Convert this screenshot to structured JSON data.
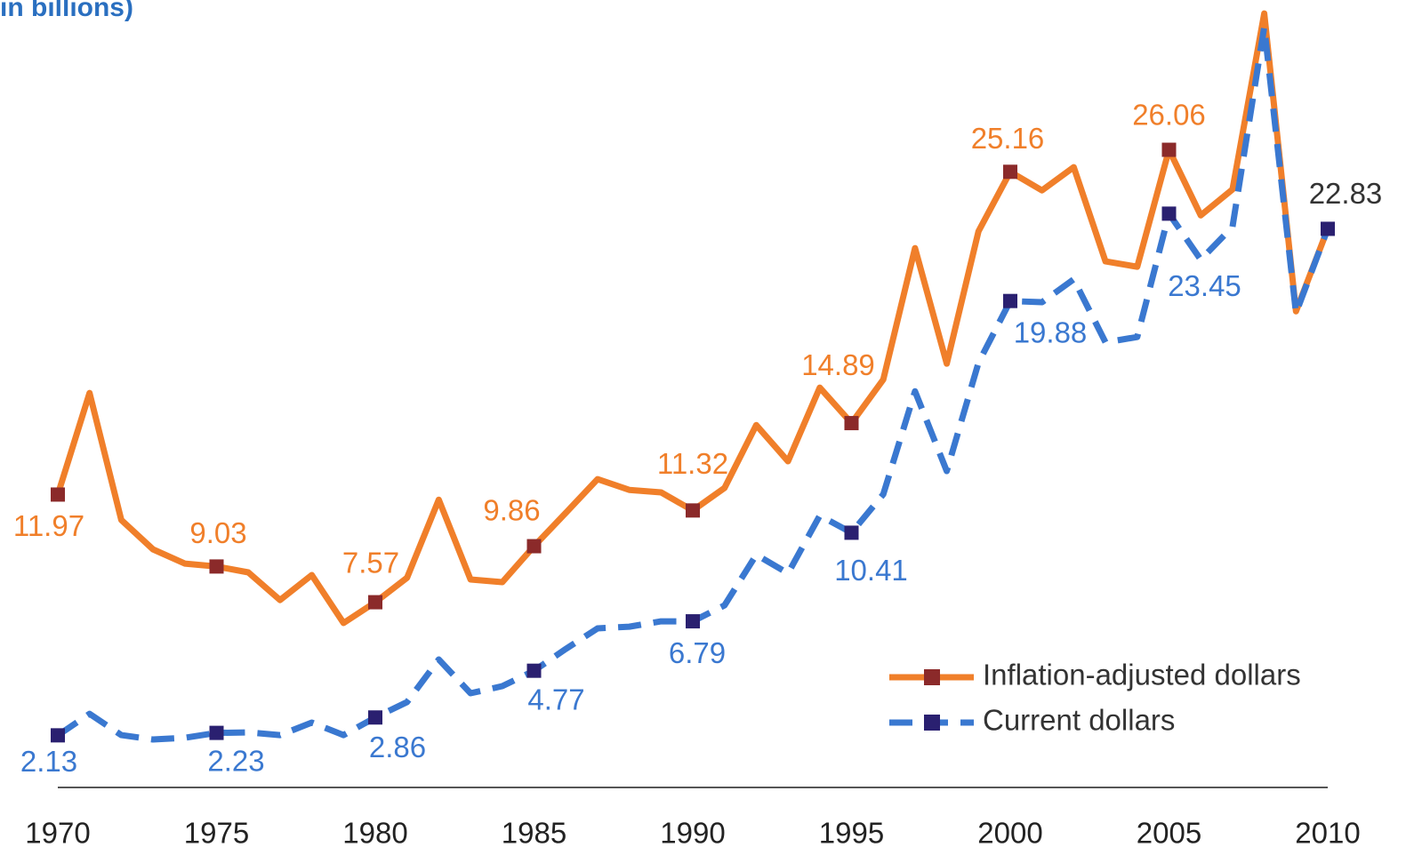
{
  "chart_data": {
    "type": "line",
    "title": "in billions)",
    "x": [
      1970,
      1971,
      1972,
      1973,
      1974,
      1975,
      1976,
      1977,
      1978,
      1979,
      1980,
      1981,
      1982,
      1983,
      1984,
      1985,
      1986,
      1987,
      1988,
      1989,
      1990,
      1991,
      1992,
      1993,
      1994,
      1995,
      1996,
      1997,
      1998,
      1999,
      2000,
      2001,
      2002,
      2003,
      2004,
      2005,
      2006,
      2007,
      2008,
      2009,
      2010
    ],
    "xlim": [
      1970,
      2010
    ],
    "xticks": [
      1970,
      1975,
      1980,
      1985,
      1990,
      1995,
      2000,
      2005,
      2010
    ],
    "ylim": [
      0,
      32
    ],
    "legend": "bottom-right",
    "series": [
      {
        "name": "Inflation-adjusted dollars",
        "color": "#f07f2a",
        "marker_color": "#8b2a2a",
        "dash": false,
        "values": [
          11.97,
          16.12,
          10.93,
          9.73,
          9.15,
          9.03,
          8.79,
          7.66,
          8.68,
          6.72,
          7.57,
          8.57,
          11.76,
          8.5,
          8.39,
          9.86,
          11.22,
          12.6,
          12.16,
          12.06,
          11.32,
          12.24,
          14.81,
          13.33,
          16.34,
          14.89,
          16.67,
          22.04,
          17.32,
          22.73,
          25.16,
          24.4,
          25.35,
          21.5,
          21.28,
          26.06,
          23.38,
          24.44,
          31.63,
          19.46,
          22.83
        ],
        "value_labels": [
          "11.97",
          null,
          null,
          null,
          null,
          "9.03",
          null,
          null,
          null,
          null,
          "7.57",
          null,
          null,
          null,
          null,
          "9.86",
          null,
          null,
          null,
          null,
          "11.32",
          null,
          null,
          null,
          null,
          "14.89",
          null,
          null,
          null,
          null,
          "25.16",
          null,
          null,
          null,
          null,
          "26.06",
          null,
          null,
          null,
          null,
          null
        ]
      },
      {
        "name": "Current dollars",
        "color": "#3a78d0",
        "marker_color": "#2a2070",
        "dash": true,
        "values": [
          2.13,
          3.01,
          2.14,
          1.96,
          2.03,
          2.23,
          2.25,
          2.14,
          2.65,
          2.14,
          2.86,
          3.49,
          5.23,
          3.85,
          4.14,
          4.77,
          5.66,
          6.5,
          6.57,
          6.79,
          6.79,
          7.44,
          9.51,
          8.75,
          11.11,
          10.41,
          11.98,
          16.19,
          12.93,
          17.36,
          19.88,
          19.83,
          20.77,
          18.19,
          18.41,
          23.45,
          21.57,
          22.91,
          31.08,
          19.39,
          22.83
        ],
        "value_labels": [
          "2.13",
          null,
          null,
          null,
          null,
          "2.23",
          null,
          null,
          null,
          null,
          "2.86",
          null,
          null,
          null,
          null,
          "4.77",
          null,
          null,
          null,
          null,
          "6.79",
          null,
          null,
          null,
          null,
          "10.41",
          null,
          null,
          null,
          null,
          "19.88",
          null,
          null,
          null,
          null,
          "23.45",
          null,
          null,
          null,
          null,
          "22.83"
        ]
      }
    ]
  }
}
